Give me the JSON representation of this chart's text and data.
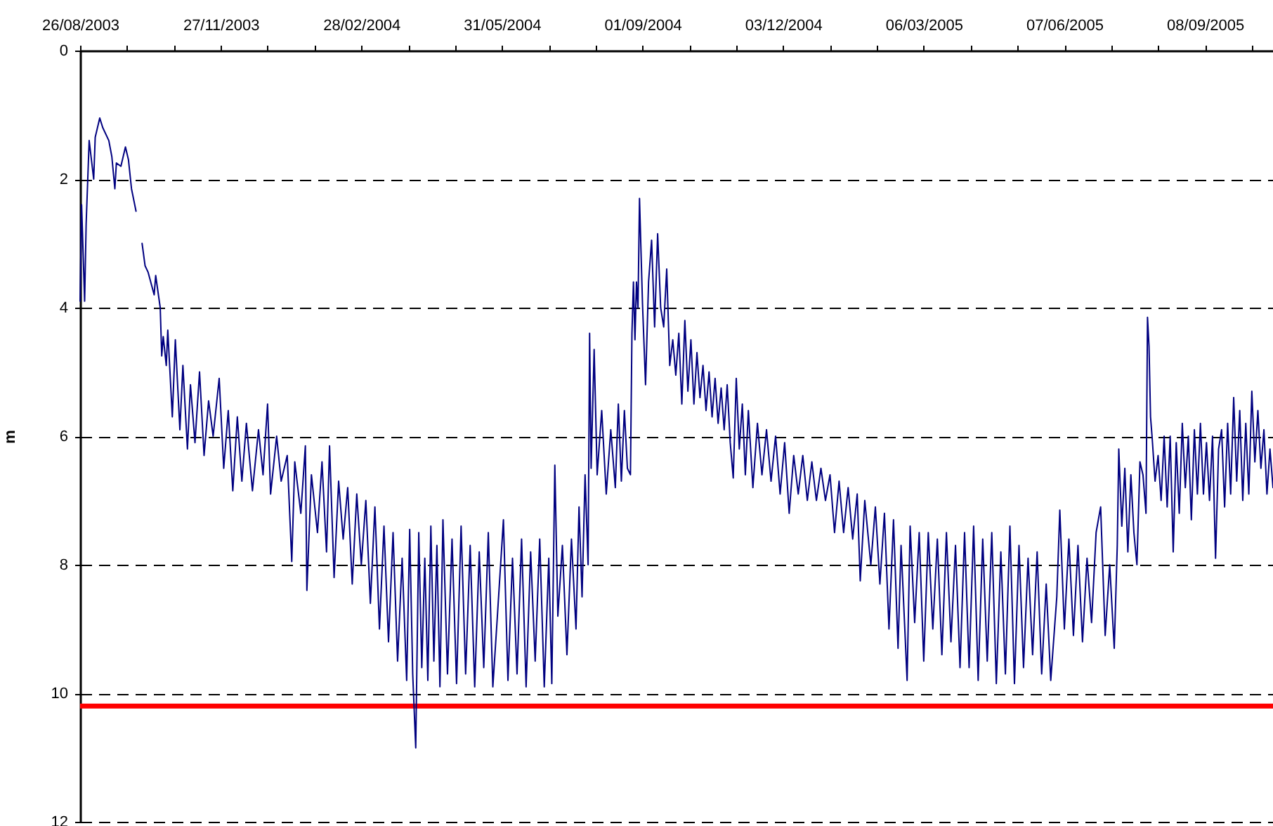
{
  "chart_data": {
    "type": "line",
    "ylabel": "m",
    "color": "#000080",
    "x": [
      "2003-08-26",
      "2003-08-27",
      "2003-08-29",
      "2003-08-30",
      "2003-09-01",
      "2003-09-04",
      "2003-09-05",
      "2003-09-08",
      "2003-09-10",
      "2003-09-14",
      "2003-09-16",
      "2003-09-18",
      "2003-09-19",
      "2003-09-22",
      "2003-09-25",
      "2003-09-27",
      "2003-09-29",
      "2003-10-02",
      "2003-10-04",
      "2003-10-06",
      "2003-10-08",
      "2003-10-10",
      "2003-10-14",
      "2003-10-15",
      "2003-10-18",
      "2003-10-19",
      "2003-10-20",
      "2003-10-22",
      "2003-10-23",
      "2003-10-26",
      "2003-10-28",
      "2003-10-31",
      "2003-11-02",
      "2003-11-05",
      "2003-11-07",
      "2003-11-10",
      "2003-11-13",
      "2003-11-16",
      "2003-11-19",
      "2003-11-22",
      "2003-11-26",
      "2003-11-29",
      "2003-12-02",
      "2003-12-05",
      "2003-12-08",
      "2003-12-11",
      "2003-12-14",
      "2003-12-18",
      "2003-12-22",
      "2003-12-25",
      "2003-12-28",
      "2003-12-30",
      "2004-01-03",
      "2004-01-06",
      "2004-01-10",
      "2004-01-13",
      "2004-01-15",
      "2004-01-19",
      "2004-01-22",
      "2004-01-23",
      "2004-01-26",
      "2004-01-30",
      "2004-02-02",
      "2004-02-05",
      "2004-02-07",
      "2004-02-10",
      "2004-02-13",
      "2004-02-16",
      "2004-02-19",
      "2004-02-22",
      "2004-02-25",
      "2004-02-28",
      "2004-03-02",
      "2004-03-05",
      "2004-03-08",
      "2004-03-11",
      "2004-03-14",
      "2004-03-17",
      "2004-03-20",
      "2004-03-23",
      "2004-03-26",
      "2004-03-29",
      "2004-03-31",
      "2004-04-02",
      "2004-04-04",
      "2004-04-06",
      "2004-04-08",
      "2004-04-10",
      "2004-04-12",
      "2004-04-14",
      "2004-04-16",
      "2004-04-18",
      "2004-04-20",
      "2004-04-22",
      "2004-04-25",
      "2004-04-28",
      "2004-05-01",
      "2004-05-04",
      "2004-05-07",
      "2004-05-10",
      "2004-05-13",
      "2004-05-16",
      "2004-05-19",
      "2004-05-22",
      "2004-05-25",
      "2004-05-28",
      "2004-06-01",
      "2004-06-04",
      "2004-06-07",
      "2004-06-10",
      "2004-06-13",
      "2004-06-16",
      "2004-06-19",
      "2004-06-22",
      "2004-06-25",
      "2004-06-28",
      "2004-07-01",
      "2004-07-03",
      "2004-07-05",
      "2004-07-07",
      "2004-07-10",
      "2004-07-13",
      "2004-07-16",
      "2004-07-19",
      "2004-07-21",
      "2004-07-23",
      "2004-07-25",
      "2004-07-27",
      "2004-07-28",
      "2004-07-29",
      "2004-07-31",
      "2004-08-02",
      "2004-08-05",
      "2004-08-08",
      "2004-08-11",
      "2004-08-14",
      "2004-08-16",
      "2004-08-18",
      "2004-08-20",
      "2004-08-22",
      "2004-08-24",
      "2004-08-25",
      "2004-08-26",
      "2004-08-27",
      "2004-08-28",
      "2004-08-29",
      "2004-08-30",
      "2004-09-01",
      "2004-09-03",
      "2004-09-05",
      "2004-09-07",
      "2004-09-09",
      "2004-09-11",
      "2004-09-13",
      "2004-09-15",
      "2004-09-17",
      "2004-09-19",
      "2004-09-21",
      "2004-09-23",
      "2004-09-25",
      "2004-09-27",
      "2004-09-29",
      "2004-10-01",
      "2004-10-03",
      "2004-10-05",
      "2004-10-07",
      "2004-10-09",
      "2004-10-11",
      "2004-10-13",
      "2004-10-15",
      "2004-10-17",
      "2004-10-19",
      "2004-10-21",
      "2004-10-23",
      "2004-10-25",
      "2004-10-27",
      "2004-10-29",
      "2004-10-31",
      "2004-11-02",
      "2004-11-04",
      "2004-11-06",
      "2004-11-08",
      "2004-11-10",
      "2004-11-13",
      "2004-11-16",
      "2004-11-19",
      "2004-11-22",
      "2004-11-25",
      "2004-11-28",
      "2004-12-01",
      "2004-12-04",
      "2004-12-07",
      "2004-12-10",
      "2004-12-13",
      "2004-12-16",
      "2004-12-19",
      "2004-12-22",
      "2004-12-25",
      "2004-12-28",
      "2004-12-31",
      "2005-01-03",
      "2005-01-06",
      "2005-01-09",
      "2005-01-12",
      "2005-01-15",
      "2005-01-18",
      "2005-01-21",
      "2005-01-23",
      "2005-01-26",
      "2005-01-30",
      "2005-02-02",
      "2005-02-05",
      "2005-02-08",
      "2005-02-11",
      "2005-02-14",
      "2005-02-17",
      "2005-02-19",
      "2005-02-23",
      "2005-02-25",
      "2005-02-28",
      "2005-03-03",
      "2005-03-06",
      "2005-03-09",
      "2005-03-12",
      "2005-03-15",
      "2005-03-18",
      "2005-03-21",
      "2005-03-24",
      "2005-03-27",
      "2005-03-30",
      "2005-04-02",
      "2005-04-05",
      "2005-04-08",
      "2005-04-11",
      "2005-04-14",
      "2005-04-17",
      "2005-04-20",
      "2005-04-23",
      "2005-04-26",
      "2005-04-29",
      "2005-05-02",
      "2005-05-05",
      "2005-05-08",
      "2005-05-11",
      "2005-05-14",
      "2005-05-17",
      "2005-05-20",
      "2005-05-23",
      "2005-05-26",
      "2005-05-29",
      "2005-06-02",
      "2005-06-04",
      "2005-06-07",
      "2005-06-10",
      "2005-06-13",
      "2005-06-16",
      "2005-06-19",
      "2005-06-22",
      "2005-06-25",
      "2005-06-28",
      "2005-07-01",
      "2005-07-04",
      "2005-07-07",
      "2005-07-10",
      "2005-07-12",
      "2005-07-13",
      "2005-07-15",
      "2005-07-17",
      "2005-07-19",
      "2005-07-21",
      "2005-07-23",
      "2005-07-25",
      "2005-07-27",
      "2005-07-29",
      "2005-07-31",
      "2005-08-01",
      "2005-08-02",
      "2005-08-03",
      "2005-08-04",
      "2005-08-06",
      "2005-08-08",
      "2005-08-10",
      "2005-08-12",
      "2005-08-14",
      "2005-08-16",
      "2005-08-18",
      "2005-08-20",
      "2005-08-22",
      "2005-08-24",
      "2005-08-26",
      "2005-08-28",
      "2005-08-30",
      "2005-09-01",
      "2005-09-03",
      "2005-09-05",
      "2005-09-07",
      "2005-09-09",
      "2005-09-11",
      "2005-09-13",
      "2005-09-15",
      "2005-09-17",
      "2005-09-19",
      "2005-09-21",
      "2005-09-23",
      "2005-09-25",
      "2005-09-27",
      "2005-09-29",
      "2005-10-01",
      "2005-10-03",
      "2005-10-05",
      "2005-10-07",
      "2005-10-09",
      "2005-10-11",
      "2005-10-13",
      "2005-10-15",
      "2005-10-17",
      "2005-10-19",
      "2005-10-21",
      "2005-10-23"
    ],
    "values": [
      3.9,
      2.4,
      3.9,
      2.7,
      1.4,
      2.0,
      1.35,
      1.05,
      1.2,
      1.4,
      1.65,
      2.15,
      1.75,
      1.8,
      1.5,
      1.7,
      2.15,
      2.5,
      null,
      3.0,
      3.35,
      3.45,
      3.8,
      3.5,
      4.0,
      4.75,
      4.45,
      4.9,
      4.35,
      5.7,
      4.5,
      5.9,
      4.9,
      6.2,
      5.2,
      6.1,
      5.0,
      6.3,
      5.45,
      6.0,
      5.1,
      6.5,
      5.6,
      6.85,
      5.7,
      6.7,
      5.8,
      6.85,
      5.9,
      6.6,
      5.5,
      6.9,
      6.0,
      6.7,
      6.3,
      7.95,
      6.4,
      7.2,
      6.15,
      8.4,
      6.6,
      7.5,
      6.4,
      7.8,
      6.15,
      8.2,
      6.7,
      7.6,
      6.8,
      8.3,
      6.9,
      8.0,
      7.0,
      8.6,
      7.1,
      9.0,
      7.4,
      9.2,
      7.5,
      9.5,
      7.9,
      9.8,
      7.45,
      9.7,
      10.85,
      7.5,
      9.6,
      7.9,
      9.8,
      7.4,
      9.5,
      7.7,
      9.9,
      7.3,
      9.7,
      7.6,
      9.85,
      7.4,
      9.7,
      7.7,
      9.9,
      7.8,
      9.6,
      7.5,
      9.9,
      8.8,
      7.3,
      9.8,
      7.9,
      9.7,
      7.6,
      9.9,
      7.8,
      9.5,
      7.6,
      9.9,
      7.9,
      9.85,
      6.45,
      8.8,
      7.7,
      9.4,
      7.6,
      9.0,
      7.1,
      8.5,
      6.6,
      8.0,
      4.4,
      6.5,
      4.65,
      6.6,
      5.6,
      6.9,
      5.9,
      6.8,
      5.5,
      6.7,
      5.6,
      6.5,
      6.6,
      4.4,
      3.6,
      4.5,
      3.6,
      4.0,
      2.3,
      3.95,
      5.2,
      3.6,
      2.95,
      4.3,
      2.85,
      4.0,
      4.3,
      3.4,
      4.9,
      4.5,
      5.05,
      4.4,
      5.5,
      4.2,
      5.3,
      4.5,
      5.5,
      4.7,
      5.4,
      4.9,
      5.6,
      5.0,
      5.7,
      5.1,
      5.8,
      5.25,
      5.9,
      5.2,
      6.1,
      6.65,
      5.1,
      6.2,
      5.5,
      6.6,
      5.6,
      6.8,
      5.8,
      6.6,
      5.9,
      6.7,
      6.0,
      6.9,
      6.1,
      7.2,
      6.3,
      6.9,
      6.3,
      7.0,
      6.4,
      7.0,
      6.5,
      7.0,
      6.6,
      7.5,
      6.7,
      7.5,
      6.8,
      7.6,
      6.9,
      8.25,
      7.0,
      8.0,
      7.1,
      8.3,
      7.2,
      9.0,
      7.3,
      9.3,
      7.7,
      9.8,
      7.4,
      8.9,
      7.5,
      9.5,
      7.5,
      9.0,
      7.6,
      9.4,
      7.5,
      9.2,
      7.7,
      9.6,
      7.5,
      9.6,
      7.4,
      9.8,
      7.6,
      9.5,
      7.5,
      9.85,
      7.8,
      9.7,
      7.4,
      9.85,
      7.7,
      9.6,
      7.9,
      9.4,
      7.8,
      9.7,
      8.3,
      9.8,
      8.5,
      7.15,
      9.0,
      7.6,
      9.1,
      7.7,
      9.2,
      7.9,
      8.9,
      7.5,
      7.1,
      9.1,
      8.0,
      9.3,
      7.7,
      6.2,
      7.4,
      6.5,
      7.8,
      6.6,
      7.5,
      8.0,
      6.4,
      6.6,
      7.2,
      4.15,
      4.6,
      5.7,
      6.0,
      6.7,
      6.3,
      7.0,
      6.0,
      7.1,
      6.0,
      7.8,
      6.1,
      7.2,
      5.8,
      6.8,
      6.0,
      7.3,
      5.9,
      6.9,
      5.8,
      6.9,
      6.1,
      7.0,
      6.0,
      7.9,
      6.2,
      5.9,
      7.1,
      5.8,
      6.9,
      5.4,
      6.7,
      5.6,
      7.0,
      5.8,
      6.9,
      5.3,
      6.4,
      5.6,
      6.5,
      5.9,
      6.9,
      6.2,
      6.8
    ],
    "xlim": [
      "2003-08-26",
      "2005-10-23"
    ],
    "xticks": [
      {
        "value": "2003-08-26",
        "label": "26/08/2003"
      },
      {
        "value": "2003-09-26",
        "label": null
      },
      {
        "value": "2003-10-27",
        "label": null
      },
      {
        "value": "2003-11-27",
        "label": "27/11/2003"
      },
      {
        "value": "2003-12-28",
        "label": null
      },
      {
        "value": "2004-01-28",
        "label": null
      },
      {
        "value": "2004-02-28",
        "label": "28/02/2004"
      },
      {
        "value": "2004-03-30",
        "label": null
      },
      {
        "value": "2004-04-30",
        "label": null
      },
      {
        "value": "2004-05-31",
        "label": "31/05/2004"
      },
      {
        "value": "2004-07-01",
        "label": null
      },
      {
        "value": "2004-08-01",
        "label": null
      },
      {
        "value": "2004-09-01",
        "label": "01/09/2004"
      },
      {
        "value": "2004-10-02",
        "label": null
      },
      {
        "value": "2004-11-02",
        "label": null
      },
      {
        "value": "2004-12-03",
        "label": "03/12/2004"
      },
      {
        "value": "2005-01-03",
        "label": null
      },
      {
        "value": "2005-02-03",
        "label": null
      },
      {
        "value": "2005-03-06",
        "label": "06/03/2005"
      },
      {
        "value": "2005-04-06",
        "label": null
      },
      {
        "value": "2005-05-07",
        "label": null
      },
      {
        "value": "2005-06-07",
        "label": "07/06/2005"
      },
      {
        "value": "2005-07-08",
        "label": null
      },
      {
        "value": "2005-08-08",
        "label": null
      },
      {
        "value": "2005-09-08",
        "label": "08/09/2005"
      },
      {
        "value": "2005-10-09",
        "label": null
      }
    ],
    "ylim": [
      12,
      0
    ],
    "yticks": [
      0,
      2,
      4,
      6,
      8,
      10,
      12
    ],
    "grid": "y",
    "ref_lines": [
      {
        "axis": "y",
        "value": 10.2,
        "color": "#ff0000"
      }
    ]
  }
}
